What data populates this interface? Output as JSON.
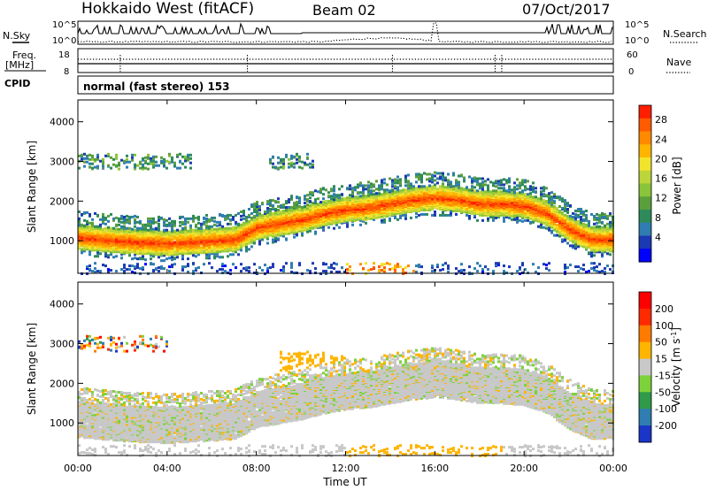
{
  "header": {
    "station": "Hokkaido West (fitACF)",
    "beam": "Beam 02",
    "date": "07/Oct/2017",
    "mode": "normal (fast stereo) 153"
  },
  "side_labels": {
    "nsky": "N.Sky",
    "freq_line1": "Freq.",
    "freq_line2": "[MHz]",
    "cpid": "CPID",
    "nsearch": "N.Search",
    "nave": "Nave"
  },
  "ticks": {
    "noise_left": [
      "10^5",
      "10^0"
    ],
    "noise_right": [
      "10^5",
      "10^0"
    ],
    "freq_left": [
      "18",
      "8"
    ],
    "freq_right": [
      "60",
      "0"
    ]
  },
  "chart_data": [
    {
      "type": "heatmap",
      "id": "power",
      "ylabel": "Slant Range [km]",
      "xlabel": "",
      "x_ticks": [
        "00:00",
        "04:00",
        "08:00",
        "12:00",
        "16:00",
        "20:00",
        "00:00"
      ],
      "y_ticks": [
        "1000",
        "2000",
        "3000",
        "4000"
      ],
      "xlim_hours": [
        0,
        24
      ],
      "ylim": [
        180,
        4550
      ],
      "colorbar": {
        "label": "Power [dB]",
        "ticks": [
          "28",
          "24",
          "20",
          "16",
          "12",
          "8",
          "4"
        ],
        "range": [
          0,
          30
        ],
        "colors": [
          "#0000ff",
          "#1c39b4",
          "#2f7db1",
          "#2e8a5a",
          "#5a9f3c",
          "#89c43a",
          "#bcd53a",
          "#f2e42c",
          "#ffb400",
          "#ff8a00",
          "#ff5a00",
          "#ff1e00"
        ]
      },
      "bands": [
        {
          "h": [
            0,
            2,
            4,
            5.5,
            7,
            8,
            9,
            10,
            11,
            12,
            13,
            14,
            15,
            16,
            17,
            18,
            19,
            20,
            21,
            22,
            23,
            24
          ],
          "range_km": [
            1100,
            1000,
            950,
            1000,
            1050,
            1350,
            1450,
            1550,
            1700,
            1800,
            1850,
            1950,
            2050,
            2100,
            2050,
            1950,
            1950,
            1900,
            1700,
            1300,
            1050,
            1050
          ],
          "width_km": 300,
          "peak_db": 26
        }
      ]
    },
    {
      "type": "heatmap",
      "id": "velocity",
      "ylabel": "Slant Range [km]",
      "xlabel": "Time UT",
      "x_ticks": [
        "00:00",
        "04:00",
        "08:00",
        "12:00",
        "16:00",
        "20:00",
        "00:00"
      ],
      "y_ticks": [
        "1000",
        "2000",
        "3000",
        "4000"
      ],
      "xlim_hours": [
        0,
        24
      ],
      "ylim": [
        180,
        4550
      ],
      "colorbar": {
        "label": "Velocity [m s^-1]",
        "ticks": [
          "200",
          "100",
          "50",
          "15",
          "-15",
          "-50",
          "-100",
          "-200"
        ],
        "colors": [
          "#1a35c8",
          "#2f7db1",
          "#2e9a4a",
          "#7dd23a",
          "#c8c8c8",
          "#ffb400",
          "#ff7a00",
          "#ff2a00",
          "#ff0000"
        ]
      }
    }
  ]
}
